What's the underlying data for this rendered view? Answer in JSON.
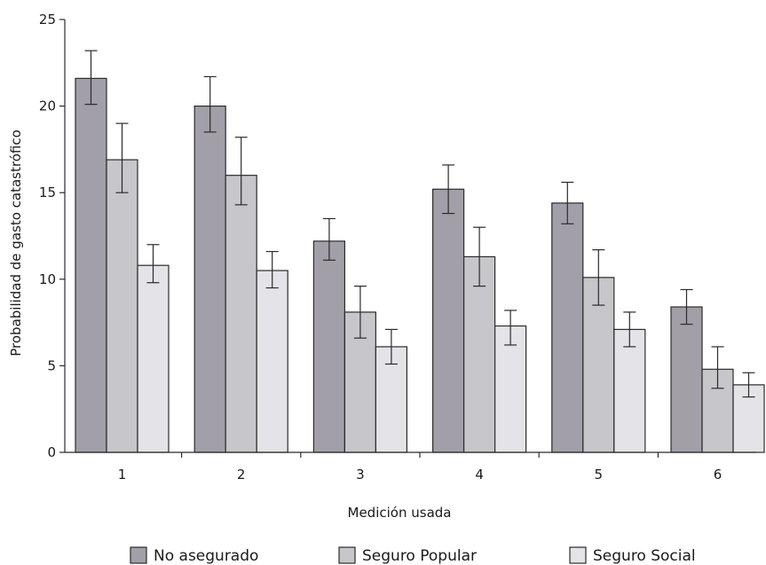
{
  "chart_data": {
    "type": "bar",
    "title": "",
    "xlabel": "Medición usada",
    "ylabel": "Probabilidad de gasto catastrófico",
    "categories": [
      "1",
      "2",
      "3",
      "4",
      "5",
      "6"
    ],
    "ylim": [
      0,
      25
    ],
    "yticks": [
      0,
      5,
      10,
      15,
      20,
      25
    ],
    "grid": false,
    "legend_position": "bottom",
    "series": [
      {
        "name": "No asegurado",
        "color": "#a29fa8",
        "values": [
          21.6,
          20.0,
          12.2,
          15.2,
          14.4,
          8.4
        ],
        "error_low": [
          20.1,
          18.5,
          11.1,
          13.8,
          13.2,
          7.4
        ],
        "error_high": [
          23.2,
          21.7,
          13.5,
          16.6,
          15.6,
          9.4
        ]
      },
      {
        "name": "Seguro Popular",
        "color": "#c6c6cb",
        "values": [
          16.9,
          16.0,
          8.1,
          11.3,
          10.1,
          4.8
        ],
        "error_low": [
          15.0,
          14.3,
          6.6,
          9.6,
          8.5,
          3.7
        ],
        "error_high": [
          19.0,
          18.2,
          9.6,
          13.0,
          11.7,
          6.1
        ]
      },
      {
        "name": "Seguro Social",
        "color": "#e4e4e8",
        "values": [
          10.8,
          10.5,
          6.1,
          7.3,
          7.1,
          3.9
        ],
        "error_low": [
          9.8,
          9.5,
          5.1,
          6.2,
          6.1,
          3.2
        ],
        "error_high": [
          12.0,
          11.6,
          7.1,
          8.2,
          8.1,
          4.6
        ]
      }
    ]
  }
}
